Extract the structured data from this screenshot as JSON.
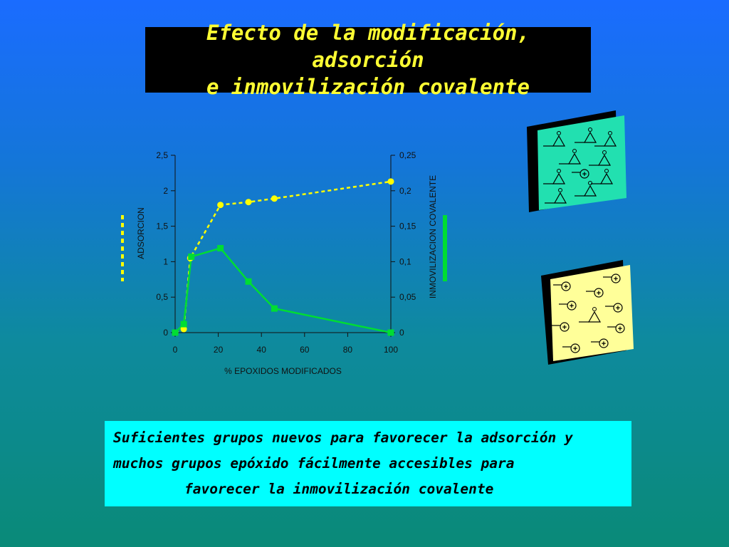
{
  "title": {
    "line1": "Efecto de la modificación, adsorción",
    "line2": "e inmovilización covalente"
  },
  "caption": {
    "line1": "Suficientes grupos nuevos para favorecer la adsorción y",
    "line2": "muchos grupos epóxido fácilmente accesibles para",
    "line3": "favorecer la inmovilización covalente"
  },
  "legend_markers": {
    "adsorcion_color": "#ffff00",
    "inmovilizacion_color": "#00dd33"
  },
  "support_illustrations": [
    {
      "name": "epoxide-support",
      "color": "#22e0b0",
      "label": "+"
    },
    {
      "name": "amino-support",
      "color": "#ffff99",
      "label": "+"
    }
  ],
  "chart_data": {
    "type": "line",
    "xlabel": "% EPOXIDOS MODIFICADOS",
    "ylabel_left": "ADSORCION",
    "ylabel_right": "INMOVILIZACION COVALENTE",
    "xlim": [
      0,
      100
    ],
    "ylim_left": [
      0,
      2.5
    ],
    "ylim_right": [
      0,
      0.25
    ],
    "x_ticks": [
      "0",
      "20",
      "40",
      "60",
      "80",
      "100"
    ],
    "y_left_ticks": [
      "0",
      "0,5",
      "1",
      "1,5",
      "2",
      "2,5"
    ],
    "y_right_ticks": [
      "0",
      "0,05",
      "0,1",
      "0,15",
      "0,2",
      "0,25"
    ],
    "grid": false,
    "series": [
      {
        "name": "ADSORCION",
        "axis": "left",
        "style": "dashed",
        "marker": "circle",
        "color": "#ffff00",
        "x": [
          0,
          4,
          7,
          21,
          34,
          46,
          100
        ],
        "y": [
          0,
          0.05,
          1.05,
          1.8,
          1.84,
          1.89,
          2.13
        ]
      },
      {
        "name": "INMOVILIZACION COVALENTE",
        "axis": "right",
        "style": "solid",
        "marker": "square",
        "color": "#00dd33",
        "x": [
          0,
          4,
          7.5,
          21,
          34,
          46,
          100
        ],
        "y": [
          0,
          0.012,
          0.107,
          0.119,
          0.072,
          0.034,
          0
        ]
      }
    ]
  }
}
